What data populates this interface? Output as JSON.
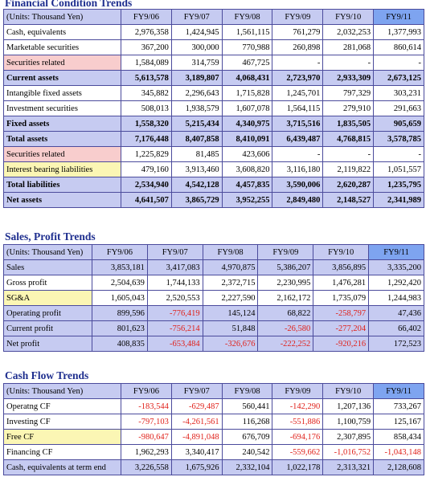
{
  "fc": {
    "title": "Financial Condition Trends",
    "unit": "(Units:   Thousand Yen)",
    "years": [
      "FY9/06",
      "FY9/07",
      "FY9/08",
      "FY9/09",
      "FY9/10",
      "FY9/11"
    ],
    "rows": [
      {
        "label": "Cash, equivalents",
        "values": [
          "2,976,358",
          "1,424,945",
          "1,561,115",
          "761,279",
          "2,032,253",
          "1,377,993"
        ]
      },
      {
        "label": "Marketable securities",
        "values": [
          "367,200",
          "300,000",
          "770,988",
          "260,898",
          "281,068",
          "860,614"
        ]
      },
      {
        "label": "Securities related",
        "values": [
          "1,584,089",
          "314,759",
          "467,725",
          "-",
          "-",
          "-"
        ]
      },
      {
        "label": "Current assets",
        "values": [
          "5,613,578",
          "3,189,807",
          "4,068,431",
          "2,723,970",
          "2,933,309",
          "2,673,125"
        ]
      },
      {
        "label": "Intangible fixed assets",
        "values": [
          "345,882",
          "2,296,643",
          "1,715,828",
          "1,245,701",
          "797,329",
          "303,231"
        ]
      },
      {
        "label": "Investment securities",
        "values": [
          "508,013",
          "1,938,579",
          "1,607,078",
          "1,564,115",
          "279,910",
          "291,663"
        ]
      },
      {
        "label": "Fixed assets",
        "values": [
          "1,558,320",
          "5,215,434",
          "4,340,975",
          "3,715,516",
          "1,835,505",
          "905,659"
        ]
      },
      {
        "label": "Total assets",
        "values": [
          "7,176,448",
          "8,407,858",
          "8,410,091",
          "6,439,487",
          "4,768,815",
          "3,578,785"
        ]
      },
      {
        "label": "Securities related",
        "values": [
          "1,225,829",
          "81,485",
          "423,606",
          "-",
          "-",
          "-"
        ]
      },
      {
        "label": "Interest bearing liabilities",
        "values": [
          "479,160",
          "3,913,460",
          "3,608,820",
          "3,116,180",
          "2,119,822",
          "1,051,557"
        ]
      },
      {
        "label": "Total liabilities",
        "values": [
          "2,534,940",
          "4,542,128",
          "4,457,835",
          "3,590,006",
          "2,620,287",
          "1,235,795"
        ]
      },
      {
        "label": "Net assets",
        "values": [
          "4,641,507",
          "3,865,729",
          "3,952,255",
          "2,849,480",
          "2,148,527",
          "2,341,989"
        ]
      }
    ]
  },
  "sp": {
    "title": "Sales, Profit Trends",
    "unit": "(Units: Thousand Yen)",
    "years": [
      "FY9/06",
      "FY9/07",
      "FY9/08",
      "FY9/09",
      "FY9/10",
      "FY9/11"
    ],
    "rows": [
      {
        "label": "Sales",
        "values": [
          "3,853,181",
          "3,417,083",
          "4,970,875",
          "5,386,207",
          "3,856,895",
          "3,335,200"
        ]
      },
      {
        "label": "Gross profit",
        "values": [
          "2,504,639",
          "1,744,133",
          "2,372,715",
          "2,230,995",
          "1,476,281",
          "1,292,420"
        ]
      },
      {
        "label": "SG&A",
        "values": [
          "1,605,043",
          "2,520,553",
          "2,227,590",
          "2,162,172",
          "1,735,079",
          "1,244,983"
        ]
      },
      {
        "label": "Operating profit",
        "values": [
          "899,596",
          "-776,419",
          "145,124",
          "68,822",
          "-258,797",
          "47,436"
        ]
      },
      {
        "label": "Current profit",
        "values": [
          "801,623",
          "-756,214",
          "51,848",
          "-26,580",
          "-277,204",
          "66,402"
        ]
      },
      {
        "label": "Net profit",
        "values": [
          "408,835",
          "-653,484",
          "-326,676",
          "-222,252",
          "-920,216",
          "172,523"
        ]
      }
    ]
  },
  "cf": {
    "title": "Cash Flow Trends",
    "unit": "(Units:   Thousand Yen)",
    "years": [
      "FY9/06",
      "FY9/07",
      "FY9/08",
      "FY9/09",
      "FY9/10",
      "FY9/11"
    ],
    "rows": [
      {
        "label": "Operatng CF",
        "values": [
          "-183,544",
          "-629,487",
          "560,441",
          "-142,290",
          "1,207,136",
          "733,267"
        ]
      },
      {
        "label": "Investing CF",
        "values": [
          "-797,103",
          "-4,261,561",
          "116,268",
          "-551,886",
          "1,100,759",
          "125,167"
        ]
      },
      {
        "label": "Free CF",
        "values": [
          "-980,647",
          "-4,891,048",
          "676,709",
          "-694,176",
          "2,307,895",
          "858,434"
        ]
      },
      {
        "label": "Financing CF",
        "values": [
          "1,962,293",
          "3,340,417",
          "240,542",
          "-559,662",
          "-1,016,752",
          "-1,043,148"
        ]
      },
      {
        "label": "Cash, equivalents at term end",
        "values": [
          "3,226,558",
          "1,675,926",
          "2,332,104",
          "1,022,178",
          "2,313,321",
          "2,128,608"
        ]
      }
    ]
  },
  "colors": {
    "title": "#1f2f8f",
    "header": "#c6cbf1",
    "highlight_year": "#7ea4f0",
    "pink": "#f8cdcd",
    "yellow": "#fbf6b4",
    "negative": "#e0211a"
  }
}
